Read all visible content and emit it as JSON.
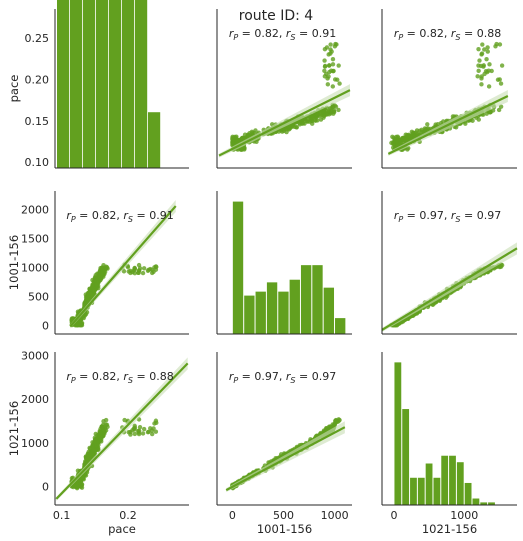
{
  "figure": {
    "title": "route ID: 4",
    "variables": [
      "pace",
      "1001-156",
      "1021-156"
    ],
    "accent_color": "#62a01f",
    "band_color": "#c8ddb4"
  },
  "chart_data": [
    {
      "type": "bar",
      "panel": "pace-hist",
      "title": "",
      "xlabel": "",
      "ylabel": "pace",
      "bin_edges": [
        0.11,
        0.123,
        0.136,
        0.149,
        0.162,
        0.175,
        0.188,
        0.201,
        0.214,
        0.227
      ],
      "counts": [
        28,
        25.5,
        27,
        1.3,
        1.1,
        0.5,
        0.4,
        0.1,
        0.0
      ],
      "ylim": [
        0.093,
        0.285
      ],
      "yticks": [
        0.1,
        0.15,
        0.2,
        0.25
      ],
      "ytick_labels": [
        "0.10",
        "0.15",
        "0.20",
        "0.25"
      ]
    },
    {
      "type": "scatter",
      "panel": "1001-156-vs-pace",
      "annotation": "r_P = 0.82, r_S = 0.91",
      "xlabel": "",
      "ylabel": "",
      "xlim": [
        -150,
        1170
      ],
      "ylim": [
        0.093,
        0.285
      ],
      "fit": {
        "x": [
          -130,
          1150
        ],
        "y": [
          0.108,
          0.187
        ]
      }
    },
    {
      "type": "scatter",
      "panel": "1021-156-vs-pace",
      "annotation": "r_P = 0.82, r_S = 0.88",
      "xlabel": "",
      "ylabel": "",
      "xlim": [
        -170,
        1750
      ],
      "ylim": [
        0.093,
        0.285
      ],
      "fit": {
        "x": [
          -80,
          1620
        ],
        "y": [
          0.11,
          0.18
        ]
      }
    },
    {
      "type": "scatter",
      "panel": "pace-vs-1001-156",
      "annotation": "r_P = 0.82, r_S = 0.91",
      "xlabel": "",
      "ylabel": "1001-156",
      "xlim": [
        0.09,
        0.292
      ],
      "ylim": [
        -150,
        2320
      ],
      "yticks": [
        0,
        500,
        1000,
        1500,
        2000
      ],
      "ytick_labels": [
        "0",
        "500",
        "1000",
        "1500",
        "2000"
      ],
      "fit": {
        "x": [
          0.113,
          0.272
        ],
        "y": [
          -20,
          2060
        ]
      }
    },
    {
      "type": "bar",
      "panel": "1001-156-hist",
      "title": "",
      "xlabel": "",
      "ylabel": "",
      "bin_edges": [
        0,
        111,
        222,
        333,
        444,
        555,
        666,
        777,
        888,
        999,
        1110
      ],
      "counts": [
        100,
        29,
        32,
        39,
        32,
        41,
        52,
        52,
        35,
        12
      ],
      "ylim": [
        0,
        108
      ]
    },
    {
      "type": "scatter",
      "panel": "1021-156-vs-1001-156",
      "annotation": "r_P = 0.97, r_S = 0.97",
      "xlabel": "",
      "ylabel": "",
      "xlim": [
        -170,
        1750
      ],
      "ylim": [
        -150,
        2320
      ],
      "fit": {
        "x": [
          -170,
          1750
        ],
        "y": [
          -80,
          1330
        ]
      }
    },
    {
      "type": "scatter",
      "panel": "pace-vs-1021-156",
      "annotation": "r_P = 0.82, r_S = 0.88",
      "xlabel": "pace",
      "ylabel": "1021-156",
      "xlim": [
        0.09,
        0.292
      ],
      "ylim": [
        -420,
        3080
      ],
      "xticks": [
        0.1,
        0.2
      ],
      "xtick_labels": [
        "0.1",
        "0.2"
      ],
      "yticks": [
        0,
        1000,
        2000,
        3000
      ],
      "ytick_labels": [
        "0",
        "1000",
        "2000",
        "3000"
      ],
      "fit": {
        "x": [
          0.092,
          0.29
        ],
        "y": [
          -280,
          2820
        ]
      }
    },
    {
      "type": "scatter",
      "panel": "1001-156-vs-1021-156",
      "annotation": "r_P = 0.97, r_S = 0.97",
      "xlabel": "1001-156",
      "ylabel": "",
      "xlim": [
        -150,
        1170
      ],
      "ylim": [
        -420,
        3080
      ],
      "xticks": [
        0,
        500,
        1000
      ],
      "xtick_labels": [
        "0",
        "500",
        "1000"
      ],
      "fit": {
        "x": [
          -60,
          1100
        ],
        "y": [
          -80,
          1360
        ]
      }
    },
    {
      "type": "bar",
      "panel": "1021-156-hist",
      "title": "",
      "xlabel": "1021-156",
      "ylabel": "",
      "bin_edges": [
        0,
        111,
        222,
        333,
        444,
        555,
        666,
        777,
        888,
        999,
        1110,
        1221,
        1332,
        1443
      ],
      "counts": [
        110,
        74,
        21,
        21,
        32,
        21,
        38,
        38,
        33,
        17,
        5,
        2,
        2
      ],
      "ylim": [
        0,
        118
      ],
      "xticks": [
        0,
        1000
      ],
      "xtick_labels": [
        "0",
        "1000"
      ],
      "xlim": [
        -170,
        1750
      ]
    }
  ]
}
